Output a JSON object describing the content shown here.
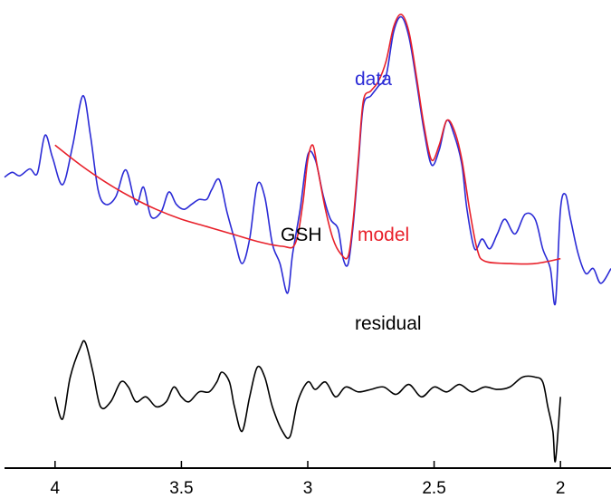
{
  "chart_data": {
    "type": "line",
    "xlabel": "",
    "ylabel": "",
    "xlim": [
      4.2,
      1.8
    ],
    "x_reversed": true,
    "grid": false,
    "legend": "none",
    "xticks": [
      {
        "value": 4,
        "label": "4"
      },
      {
        "value": 3.5,
        "label": "3.5"
      },
      {
        "value": 3,
        "label": "3"
      },
      {
        "value": 2.5,
        "label": "2.5"
      },
      {
        "value": 2,
        "label": "2"
      }
    ],
    "annotations": {
      "data": "data",
      "model": "model",
      "gsh": "GSH",
      "residual": "residual"
    },
    "colors": {
      "data": "#2b2bd6",
      "model": "#e8202a",
      "residual": "#000000"
    },
    "series": [
      {
        "key": "data",
        "points": [
          [
            4.2,
            -0.35
          ],
          [
            4.17,
            -0.25
          ],
          [
            4.14,
            -0.32
          ],
          [
            4.1,
            -0.18
          ],
          [
            4.07,
            -0.27
          ],
          [
            4.04,
            0.5
          ],
          [
            4.01,
            0.05
          ],
          [
            3.97,
            -0.5
          ],
          [
            3.93,
            0.3
          ],
          [
            3.89,
            1.3
          ],
          [
            3.86,
            0.5
          ],
          [
            3.83,
            -0.6
          ],
          [
            3.8,
            -0.9
          ],
          [
            3.76,
            -0.75
          ],
          [
            3.72,
            -0.2
          ],
          [
            3.68,
            -0.9
          ],
          [
            3.65,
            -0.55
          ],
          [
            3.62,
            -1.15
          ],
          [
            3.58,
            -1.05
          ],
          [
            3.55,
            -0.65
          ],
          [
            3.52,
            -0.9
          ],
          [
            3.49,
            -1.0
          ],
          [
            3.46,
            -0.9
          ],
          [
            3.43,
            -0.8
          ],
          [
            3.4,
            -0.8
          ],
          [
            3.38,
            -0.6
          ],
          [
            3.35,
            -0.4
          ],
          [
            3.32,
            -1.05
          ],
          [
            3.29,
            -1.6
          ],
          [
            3.26,
            -2.1
          ],
          [
            3.23,
            -1.6
          ],
          [
            3.2,
            -0.5
          ],
          [
            3.17,
            -0.75
          ],
          [
            3.14,
            -1.7
          ],
          [
            3.11,
            -2.1
          ],
          [
            3.08,
            -2.7
          ],
          [
            3.06,
            -1.9
          ],
          [
            3.03,
            -1.0
          ],
          [
            3.0,
            0.1
          ],
          [
            2.97,
            0.0
          ],
          [
            2.94,
            -0.7
          ],
          [
            2.91,
            -1.2
          ],
          [
            2.88,
            -1.4
          ],
          [
            2.86,
            -2.0
          ],
          [
            2.84,
            -2.1
          ],
          [
            2.82,
            -1.3
          ],
          [
            2.8,
            -0.1
          ],
          [
            2.78,
            1.1
          ],
          [
            2.75,
            1.3
          ],
          [
            2.72,
            1.5
          ],
          [
            2.69,
            1.7
          ],
          [
            2.66,
            2.6
          ],
          [
            2.63,
            2.9
          ],
          [
            2.6,
            2.5
          ],
          [
            2.57,
            1.6
          ],
          [
            2.54,
            0.6
          ],
          [
            2.51,
            -0.1
          ],
          [
            2.48,
            0.2
          ],
          [
            2.45,
            0.8
          ],
          [
            2.42,
            0.5
          ],
          [
            2.39,
            -0.1
          ],
          [
            2.37,
            -1.0
          ],
          [
            2.34,
            -1.8
          ],
          [
            2.31,
            -1.6
          ],
          [
            2.28,
            -1.8
          ],
          [
            2.25,
            -1.5
          ],
          [
            2.22,
            -1.2
          ],
          [
            2.18,
            -1.5
          ],
          [
            2.14,
            -1.1
          ],
          [
            2.1,
            -1.2
          ],
          [
            2.07,
            -1.8
          ],
          [
            2.04,
            -2.2
          ],
          [
            2.02,
            -2.9
          ],
          [
            2.0,
            -1.0
          ],
          [
            1.98,
            -0.7
          ],
          [
            1.96,
            -1.2
          ],
          [
            1.93,
            -1.9
          ],
          [
            1.9,
            -2.3
          ],
          [
            1.87,
            -2.2
          ],
          [
            1.84,
            -2.5
          ],
          [
            1.8,
            -2.2
          ]
        ]
      },
      {
        "key": "model",
        "points": [
          [
            4.0,
            0.3
          ],
          [
            3.9,
            -0.1
          ],
          [
            3.8,
            -0.45
          ],
          [
            3.7,
            -0.75
          ],
          [
            3.6,
            -1.0
          ],
          [
            3.5,
            -1.2
          ],
          [
            3.4,
            -1.35
          ],
          [
            3.3,
            -1.5
          ],
          [
            3.2,
            -1.65
          ],
          [
            3.1,
            -1.75
          ],
          [
            3.05,
            -1.7
          ],
          [
            3.02,
            -0.9
          ],
          [
            3.0,
            0.0
          ],
          [
            2.98,
            0.3
          ],
          [
            2.96,
            -0.2
          ],
          [
            2.93,
            -1.0
          ],
          [
            2.9,
            -1.6
          ],
          [
            2.87,
            -1.9
          ],
          [
            2.84,
            -1.95
          ],
          [
            2.82,
            -1.2
          ],
          [
            2.8,
            0.0
          ],
          [
            2.78,
            1.2
          ],
          [
            2.75,
            1.4
          ],
          [
            2.72,
            1.6
          ],
          [
            2.69,
            2.0
          ],
          [
            2.66,
            2.7
          ],
          [
            2.63,
            2.95
          ],
          [
            2.6,
            2.6
          ],
          [
            2.57,
            1.7
          ],
          [
            2.54,
            0.7
          ],
          [
            2.51,
            0.0
          ],
          [
            2.48,
            0.3
          ],
          [
            2.45,
            0.8
          ],
          [
            2.42,
            0.6
          ],
          [
            2.39,
            0.0
          ],
          [
            2.36,
            -1.0
          ],
          [
            2.33,
            -1.8
          ],
          [
            2.3,
            -2.05
          ],
          [
            2.2,
            -2.1
          ],
          [
            2.1,
            -2.1
          ],
          [
            2.0,
            -2.0
          ]
        ]
      },
      {
        "key": "residual",
        "points": [
          [
            4.0,
            -4.8
          ],
          [
            3.97,
            -5.25
          ],
          [
            3.94,
            -4.4
          ],
          [
            3.9,
            -3.8
          ],
          [
            3.88,
            -3.7
          ],
          [
            3.85,
            -4.3
          ],
          [
            3.82,
            -5.0
          ],
          [
            3.78,
            -4.9
          ],
          [
            3.74,
            -4.5
          ],
          [
            3.71,
            -4.6
          ],
          [
            3.68,
            -4.9
          ],
          [
            3.64,
            -4.8
          ],
          [
            3.6,
            -5.0
          ],
          [
            3.56,
            -4.9
          ],
          [
            3.53,
            -4.6
          ],
          [
            3.5,
            -4.8
          ],
          [
            3.47,
            -4.9
          ],
          [
            3.43,
            -4.7
          ],
          [
            3.39,
            -4.7
          ],
          [
            3.36,
            -4.5
          ],
          [
            3.34,
            -4.3
          ],
          [
            3.31,
            -4.5
          ],
          [
            3.29,
            -5.0
          ],
          [
            3.26,
            -5.5
          ],
          [
            3.23,
            -4.8
          ],
          [
            3.2,
            -4.2
          ],
          [
            3.17,
            -4.4
          ],
          [
            3.14,
            -5.0
          ],
          [
            3.1,
            -5.5
          ],
          [
            3.07,
            -5.6
          ],
          [
            3.04,
            -4.9
          ],
          [
            3.0,
            -4.5
          ],
          [
            2.97,
            -4.65
          ],
          [
            2.93,
            -4.5
          ],
          [
            2.89,
            -4.8
          ],
          [
            2.85,
            -4.6
          ],
          [
            2.8,
            -4.7
          ],
          [
            2.75,
            -4.65
          ],
          [
            2.7,
            -4.6
          ],
          [
            2.65,
            -4.75
          ],
          [
            2.6,
            -4.55
          ],
          [
            2.55,
            -4.8
          ],
          [
            2.5,
            -4.6
          ],
          [
            2.45,
            -4.7
          ],
          [
            2.4,
            -4.55
          ],
          [
            2.35,
            -4.7
          ],
          [
            2.3,
            -4.6
          ],
          [
            2.25,
            -4.65
          ],
          [
            2.2,
            -4.6
          ],
          [
            2.15,
            -4.4
          ],
          [
            2.1,
            -4.4
          ],
          [
            2.07,
            -4.5
          ],
          [
            2.05,
            -5.0
          ],
          [
            2.03,
            -5.5
          ],
          [
            2.02,
            -6.1
          ],
          [
            2.0,
            -4.8
          ]
        ]
      }
    ]
  }
}
